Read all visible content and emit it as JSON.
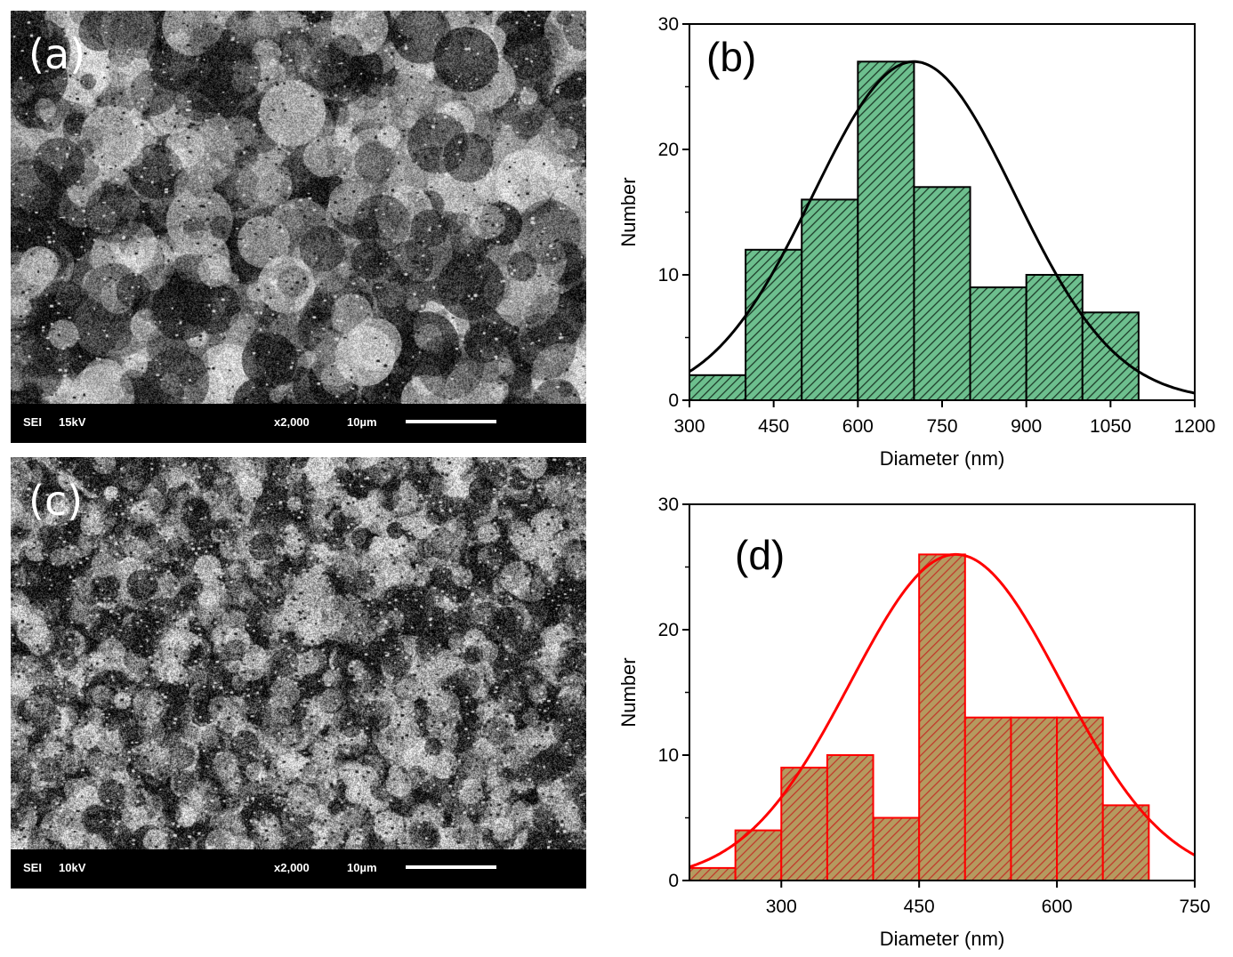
{
  "sem_panels": [
    {
      "label": "(a)",
      "mode": "SEI",
      "voltage": "15kV",
      "magnification": "x2,000",
      "scale": "10µm"
    },
    {
      "label": "(c)",
      "mode": "SEI",
      "voltage": "10kV",
      "magnification": "x2,000",
      "scale": "10µm"
    }
  ],
  "colors": {
    "green_fill": "#6dbf8e",
    "red_fill": "#b59a5f",
    "green_hatch": "#1e3d2a",
    "red_hatch": "#c0392b",
    "red_line": "#ff0000"
  },
  "chart_data": [
    {
      "type": "bar",
      "panel_label": "(b)",
      "xlabel": "Diameter (nm)",
      "ylabel": "Number",
      "xlim": [
        300,
        1200
      ],
      "ylim": [
        0,
        30
      ],
      "xticks": [
        "300",
        "450",
        "600",
        "750",
        "900",
        "1050",
        "1200"
      ],
      "yticks": [
        "0",
        "10",
        "20",
        "30"
      ],
      "bin_width": 100,
      "bin_starts": [
        300,
        400,
        500,
        600,
        700,
        800,
        900,
        1000
      ],
      "values": [
        2,
        12,
        16,
        27,
        17,
        9,
        10,
        7
      ],
      "fit": {
        "type": "gaussian",
        "center": 700,
        "sigma": 180,
        "peak": 27
      }
    },
    {
      "type": "bar",
      "panel_label": "(d)",
      "xlabel": "Diameter (nm)",
      "ylabel": "Number",
      "xlim": [
        200,
        750
      ],
      "ylim": [
        0,
        30
      ],
      "xticks": [
        "300",
        "450",
        "600",
        "750"
      ],
      "yticks": [
        "0",
        "10",
        "20",
        "30"
      ],
      "bin_width": 50,
      "bin_starts": [
        200,
        250,
        300,
        350,
        400,
        450,
        500,
        550,
        600,
        650
      ],
      "values": [
        1,
        4,
        9,
        10,
        5,
        26,
        13,
        13,
        13,
        6
      ],
      "fit": {
        "type": "gaussian",
        "center": 490,
        "sigma": 115,
        "peak": 26
      }
    }
  ]
}
